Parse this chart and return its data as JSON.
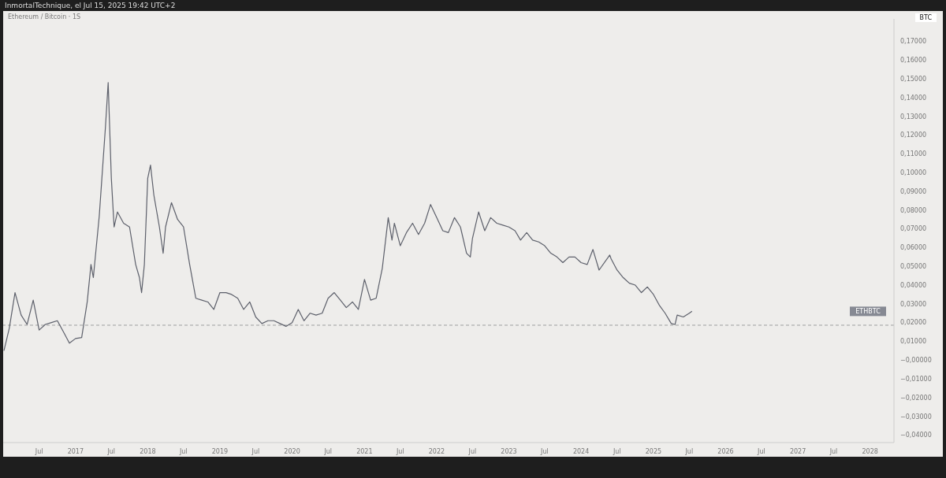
{
  "chart_data": {
    "type": "line",
    "title": "Ethereum / Bitcoin · 1S",
    "subtitle": "InmortalTechnique, el Jul 15, 2025 19:42 UTC+2",
    "ylabel": "BTC",
    "x": [
      "2016-01-05",
      "2016-02-01",
      "2016-03-01",
      "2016-04-01",
      "2016-05-01",
      "2016-06-01",
      "2016-07-01",
      "2016-08-01",
      "2016-09-01",
      "2016-10-01",
      "2016-11-01",
      "2016-12-01",
      "2017-01-01",
      "2017-02-01",
      "2017-03-01",
      "2017-03-20",
      "2017-04-01",
      "2017-05-01",
      "2017-06-01",
      "2017-06-15",
      "2017-07-01",
      "2017-07-15",
      "2017-08-01",
      "2017-09-01",
      "2017-10-01",
      "2017-11-01",
      "2017-11-20",
      "2017-12-01",
      "2017-12-15",
      "2018-01-01",
      "2018-01-15",
      "2018-02-01",
      "2018-03-01",
      "2018-03-20",
      "2018-04-01",
      "2018-05-01",
      "2018-06-01",
      "2018-07-01",
      "2018-08-01",
      "2018-09-01",
      "2018-10-01",
      "2018-11-01",
      "2018-12-01",
      "2019-01-01",
      "2019-02-01",
      "2019-03-01",
      "2019-04-01",
      "2019-05-01",
      "2019-06-01",
      "2019-07-01",
      "2019-08-01",
      "2019-09-01",
      "2019-10-01",
      "2019-11-01",
      "2019-12-01",
      "2020-01-01",
      "2020-02-01",
      "2020-03-01",
      "2020-04-01",
      "2020-05-01",
      "2020-06-01",
      "2020-07-01",
      "2020-08-01",
      "2020-09-01",
      "2020-10-01",
      "2020-11-01",
      "2020-12-01",
      "2021-01-01",
      "2021-02-01",
      "2021-03-01",
      "2021-04-01",
      "2021-05-01",
      "2021-05-20",
      "2021-06-01",
      "2021-07-01",
      "2021-08-01",
      "2021-09-01",
      "2021-10-01",
      "2021-11-01",
      "2021-12-01",
      "2022-01-01",
      "2022-02-01",
      "2022-03-01",
      "2022-04-01",
      "2022-05-01",
      "2022-06-01",
      "2022-06-20",
      "2022-07-01",
      "2022-08-01",
      "2022-09-01",
      "2022-10-01",
      "2022-11-01",
      "2022-12-01",
      "2023-01-01",
      "2023-02-01",
      "2023-03-01",
      "2023-04-01",
      "2023-05-01",
      "2023-06-01",
      "2023-07-01",
      "2023-08-01",
      "2023-09-01",
      "2023-10-01",
      "2023-11-01",
      "2023-12-01",
      "2024-01-01",
      "2024-02-01",
      "2024-03-01",
      "2024-04-01",
      "2024-05-25",
      "2024-06-01",
      "2024-07-01",
      "2024-08-01",
      "2024-09-01",
      "2024-10-01",
      "2024-11-01",
      "2024-12-01",
      "2025-01-01",
      "2025-02-01",
      "2025-03-01",
      "2025-04-01",
      "2025-04-20",
      "2025-05-01",
      "2025-06-01",
      "2025-07-01",
      "2025-07-15"
    ],
    "series": [
      {
        "color": "#5d606b",
        "values": [
          0.005,
          0.017,
          0.036,
          0.024,
          0.019,
          0.032,
          0.016,
          0.019,
          0.02,
          0.021,
          0.015,
          0.009,
          0.0115,
          0.012,
          0.031,
          0.051,
          0.044,
          0.077,
          0.124,
          0.148,
          0.097,
          0.071,
          0.079,
          0.073,
          0.071,
          0.051,
          0.044,
          0.036,
          0.051,
          0.097,
          0.104,
          0.088,
          0.071,
          0.057,
          0.071,
          0.084,
          0.075,
          0.071,
          0.051,
          0.033,
          0.032,
          0.031,
          0.027,
          0.036,
          0.036,
          0.035,
          0.033,
          0.027,
          0.031,
          0.023,
          0.0195,
          0.021,
          0.021,
          0.0195,
          0.018,
          0.02,
          0.027,
          0.021,
          0.025,
          0.024,
          0.025,
          0.033,
          0.036,
          0.032,
          0.028,
          0.031,
          0.027,
          0.043,
          0.032,
          0.033,
          0.049,
          0.076,
          0.064,
          0.073,
          0.061,
          0.068,
          0.073,
          0.067,
          0.073,
          0.083,
          0.076,
          0.069,
          0.068,
          0.076,
          0.071,
          0.057,
          0.055,
          0.065,
          0.079,
          0.069,
          0.076,
          0.073,
          0.072,
          0.071,
          0.069,
          0.064,
          0.068,
          0.064,
          0.063,
          0.061,
          0.057,
          0.055,
          0.052,
          0.055,
          0.055,
          0.052,
          0.051,
          0.059,
          0.048,
          0.056,
          0.054,
          0.048,
          0.044,
          0.041,
          0.04,
          0.036,
          0.039,
          0.035,
          0.029,
          0.025,
          0.0195,
          0.019,
          0.024,
          0.023,
          0.025,
          0.026
        ]
      }
    ],
    "xlim": [
      "2016-01-01",
      "2028-05-01"
    ],
    "xticks": [
      {
        "value": "2016-07-01",
        "label": "Jul"
      },
      {
        "value": "2017-01-01",
        "label": "2017"
      },
      {
        "value": "2017-07-01",
        "label": "Jul"
      },
      {
        "value": "2018-01-01",
        "label": "2018"
      },
      {
        "value": "2018-07-01",
        "label": "Jul"
      },
      {
        "value": "2019-01-01",
        "label": "2019"
      },
      {
        "value": "2019-07-01",
        "label": "Jul"
      },
      {
        "value": "2020-01-01",
        "label": "2020"
      },
      {
        "value": "2020-07-01",
        "label": "Jul"
      },
      {
        "value": "2021-01-01",
        "label": "2021"
      },
      {
        "value": "2021-07-01",
        "label": "Jul"
      },
      {
        "value": "2022-01-01",
        "label": "2022"
      },
      {
        "value": "2022-07-01",
        "label": "Jul"
      },
      {
        "value": "2023-01-01",
        "label": "2023"
      },
      {
        "value": "2023-07-01",
        "label": "Jul"
      },
      {
        "value": "2024-01-01",
        "label": "2024"
      },
      {
        "value": "2024-07-01",
        "label": "Jul"
      },
      {
        "value": "2025-01-01",
        "label": "2025"
      },
      {
        "value": "2025-07-01",
        "label": "Jul"
      },
      {
        "value": "2026-01-01",
        "label": "2026"
      },
      {
        "value": "2026-07-01",
        "label": "Jul"
      },
      {
        "value": "2027-01-01",
        "label": "2027"
      },
      {
        "value": "2027-07-01",
        "label": "Jul"
      },
      {
        "value": "2028-01-01",
        "label": "2028"
      }
    ],
    "ylim": [
      -0.044,
      0.182
    ],
    "yticks": [
      {
        "value": -0.04,
        "label": "−0,04000"
      },
      {
        "value": -0.03,
        "label": "−0,03000"
      },
      {
        "value": -0.02,
        "label": "−0,02000"
      },
      {
        "value": -0.01,
        "label": "−0,01000"
      },
      {
        "value": 0,
        "label": "−0,00000"
      },
      {
        "value": 0.01,
        "label": "0,01000"
      },
      {
        "value": 0.02,
        "label": "0,02000"
      },
      {
        "value": 0.03,
        "label": "0,03000"
      },
      {
        "value": 0.04,
        "label": "0,04000"
      },
      {
        "value": 0.05,
        "label": "0,05000"
      },
      {
        "value": 0.06,
        "label": "0,06000"
      },
      {
        "value": 0.07,
        "label": "0,07000"
      },
      {
        "value": 0.08,
        "label": "0,08000"
      },
      {
        "value": 0.09,
        "label": "0,09000"
      },
      {
        "value": 0.1,
        "label": "0,10000"
      },
      {
        "value": 0.11,
        "label": "0,11000"
      },
      {
        "value": 0.12,
        "label": "0,12000"
      },
      {
        "value": 0.13,
        "label": "0,13000"
      },
      {
        "value": 0.14,
        "label": "0,14000"
      },
      {
        "value": 0.15,
        "label": "0,15000"
      },
      {
        "value": 0.16,
        "label": "0,16000"
      },
      {
        "value": 0.17,
        "label": "0,17000"
      }
    ],
    "ref_lines": [
      {
        "axis": "y",
        "value": 0.0186,
        "color": "#9e9e9e",
        "line_style": "dashed"
      }
    ],
    "annotations": [
      "ETHBTC"
    ],
    "grid": false,
    "legend": false,
    "marker": "none",
    "line_style": "solid"
  }
}
